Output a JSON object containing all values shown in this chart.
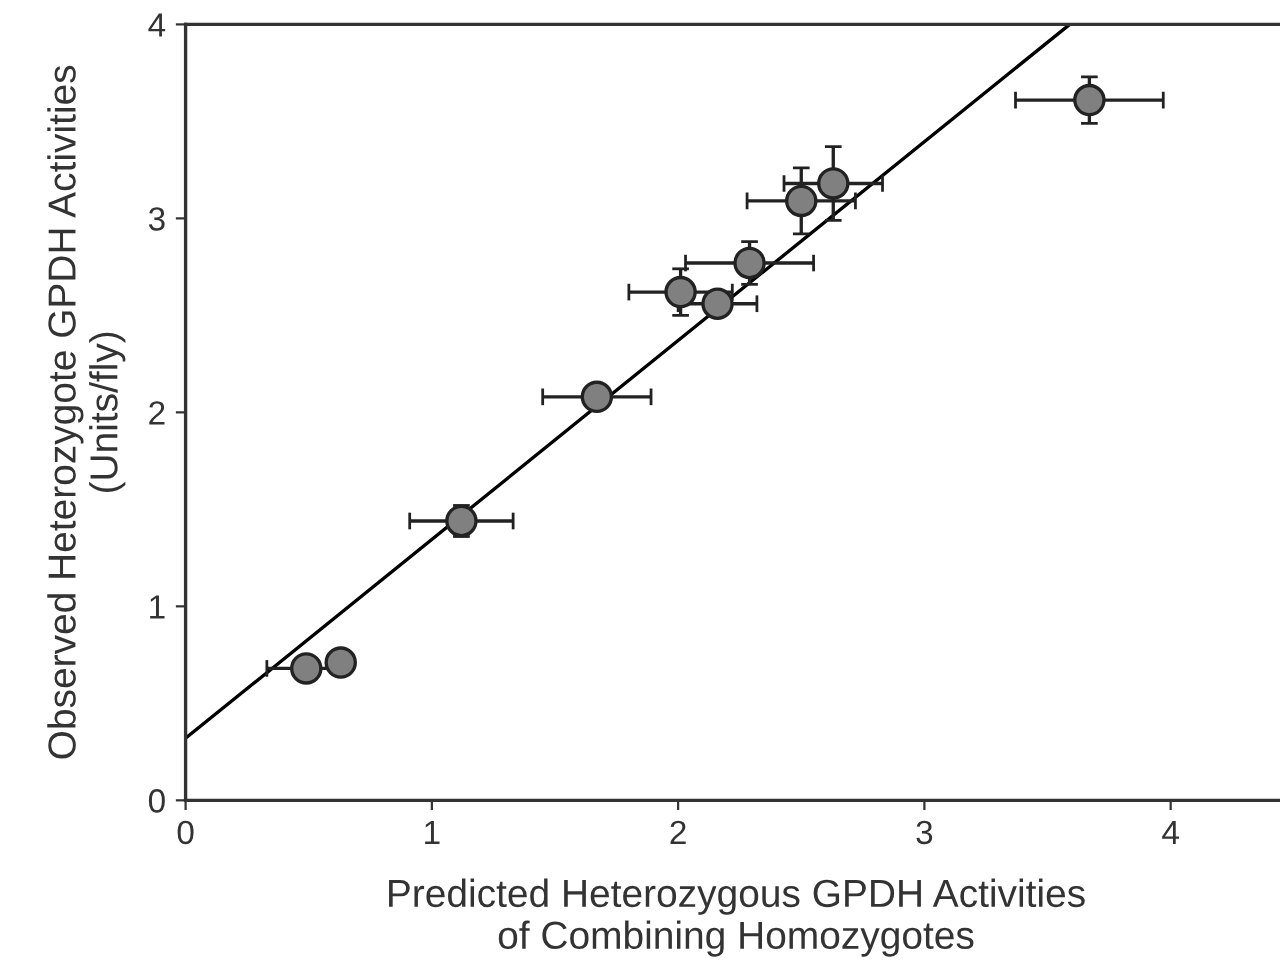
{
  "chart_data": {
    "type": "scatter",
    "xlabel": "Predicted Heterozygous GPDH Activities\nof Combining Homozygotes",
    "ylabel": "Observed Heterozygote GPDH Activities\n(Units/fly)",
    "xlim": [
      0,
      4.47
    ],
    "ylim": [
      0,
      4
    ],
    "xticks": [
      0,
      1,
      2,
      3,
      4
    ],
    "yticks": [
      0,
      1,
      2,
      3,
      4
    ],
    "grid": false,
    "legend": false,
    "series": [
      {
        "marker": "circle",
        "color": "#808080",
        "x": [
          0.49,
          0.63,
          1.12,
          1.67,
          2.01,
          2.16,
          2.29,
          2.5,
          2.63,
          3.67
        ],
        "values": [
          0.68,
          0.71,
          1.44,
          2.08,
          2.62,
          2.56,
          2.77,
          3.09,
          3.18,
          3.61
        ],
        "xerrors": [
          0.16,
          null,
          0.21,
          0.22,
          0.21,
          0.16,
          0.26,
          0.22,
          0.2,
          0.3
        ],
        "errors": [
          null,
          null,
          0.08,
          null,
          0.12,
          null,
          0.11,
          0.17,
          0.19,
          0.12
        ]
      },
      {
        "type": "line",
        "marker": "none",
        "color": "#000000",
        "x": [
          0,
          3.59
        ],
        "values": [
          0.32,
          4.0
        ]
      }
    ]
  }
}
